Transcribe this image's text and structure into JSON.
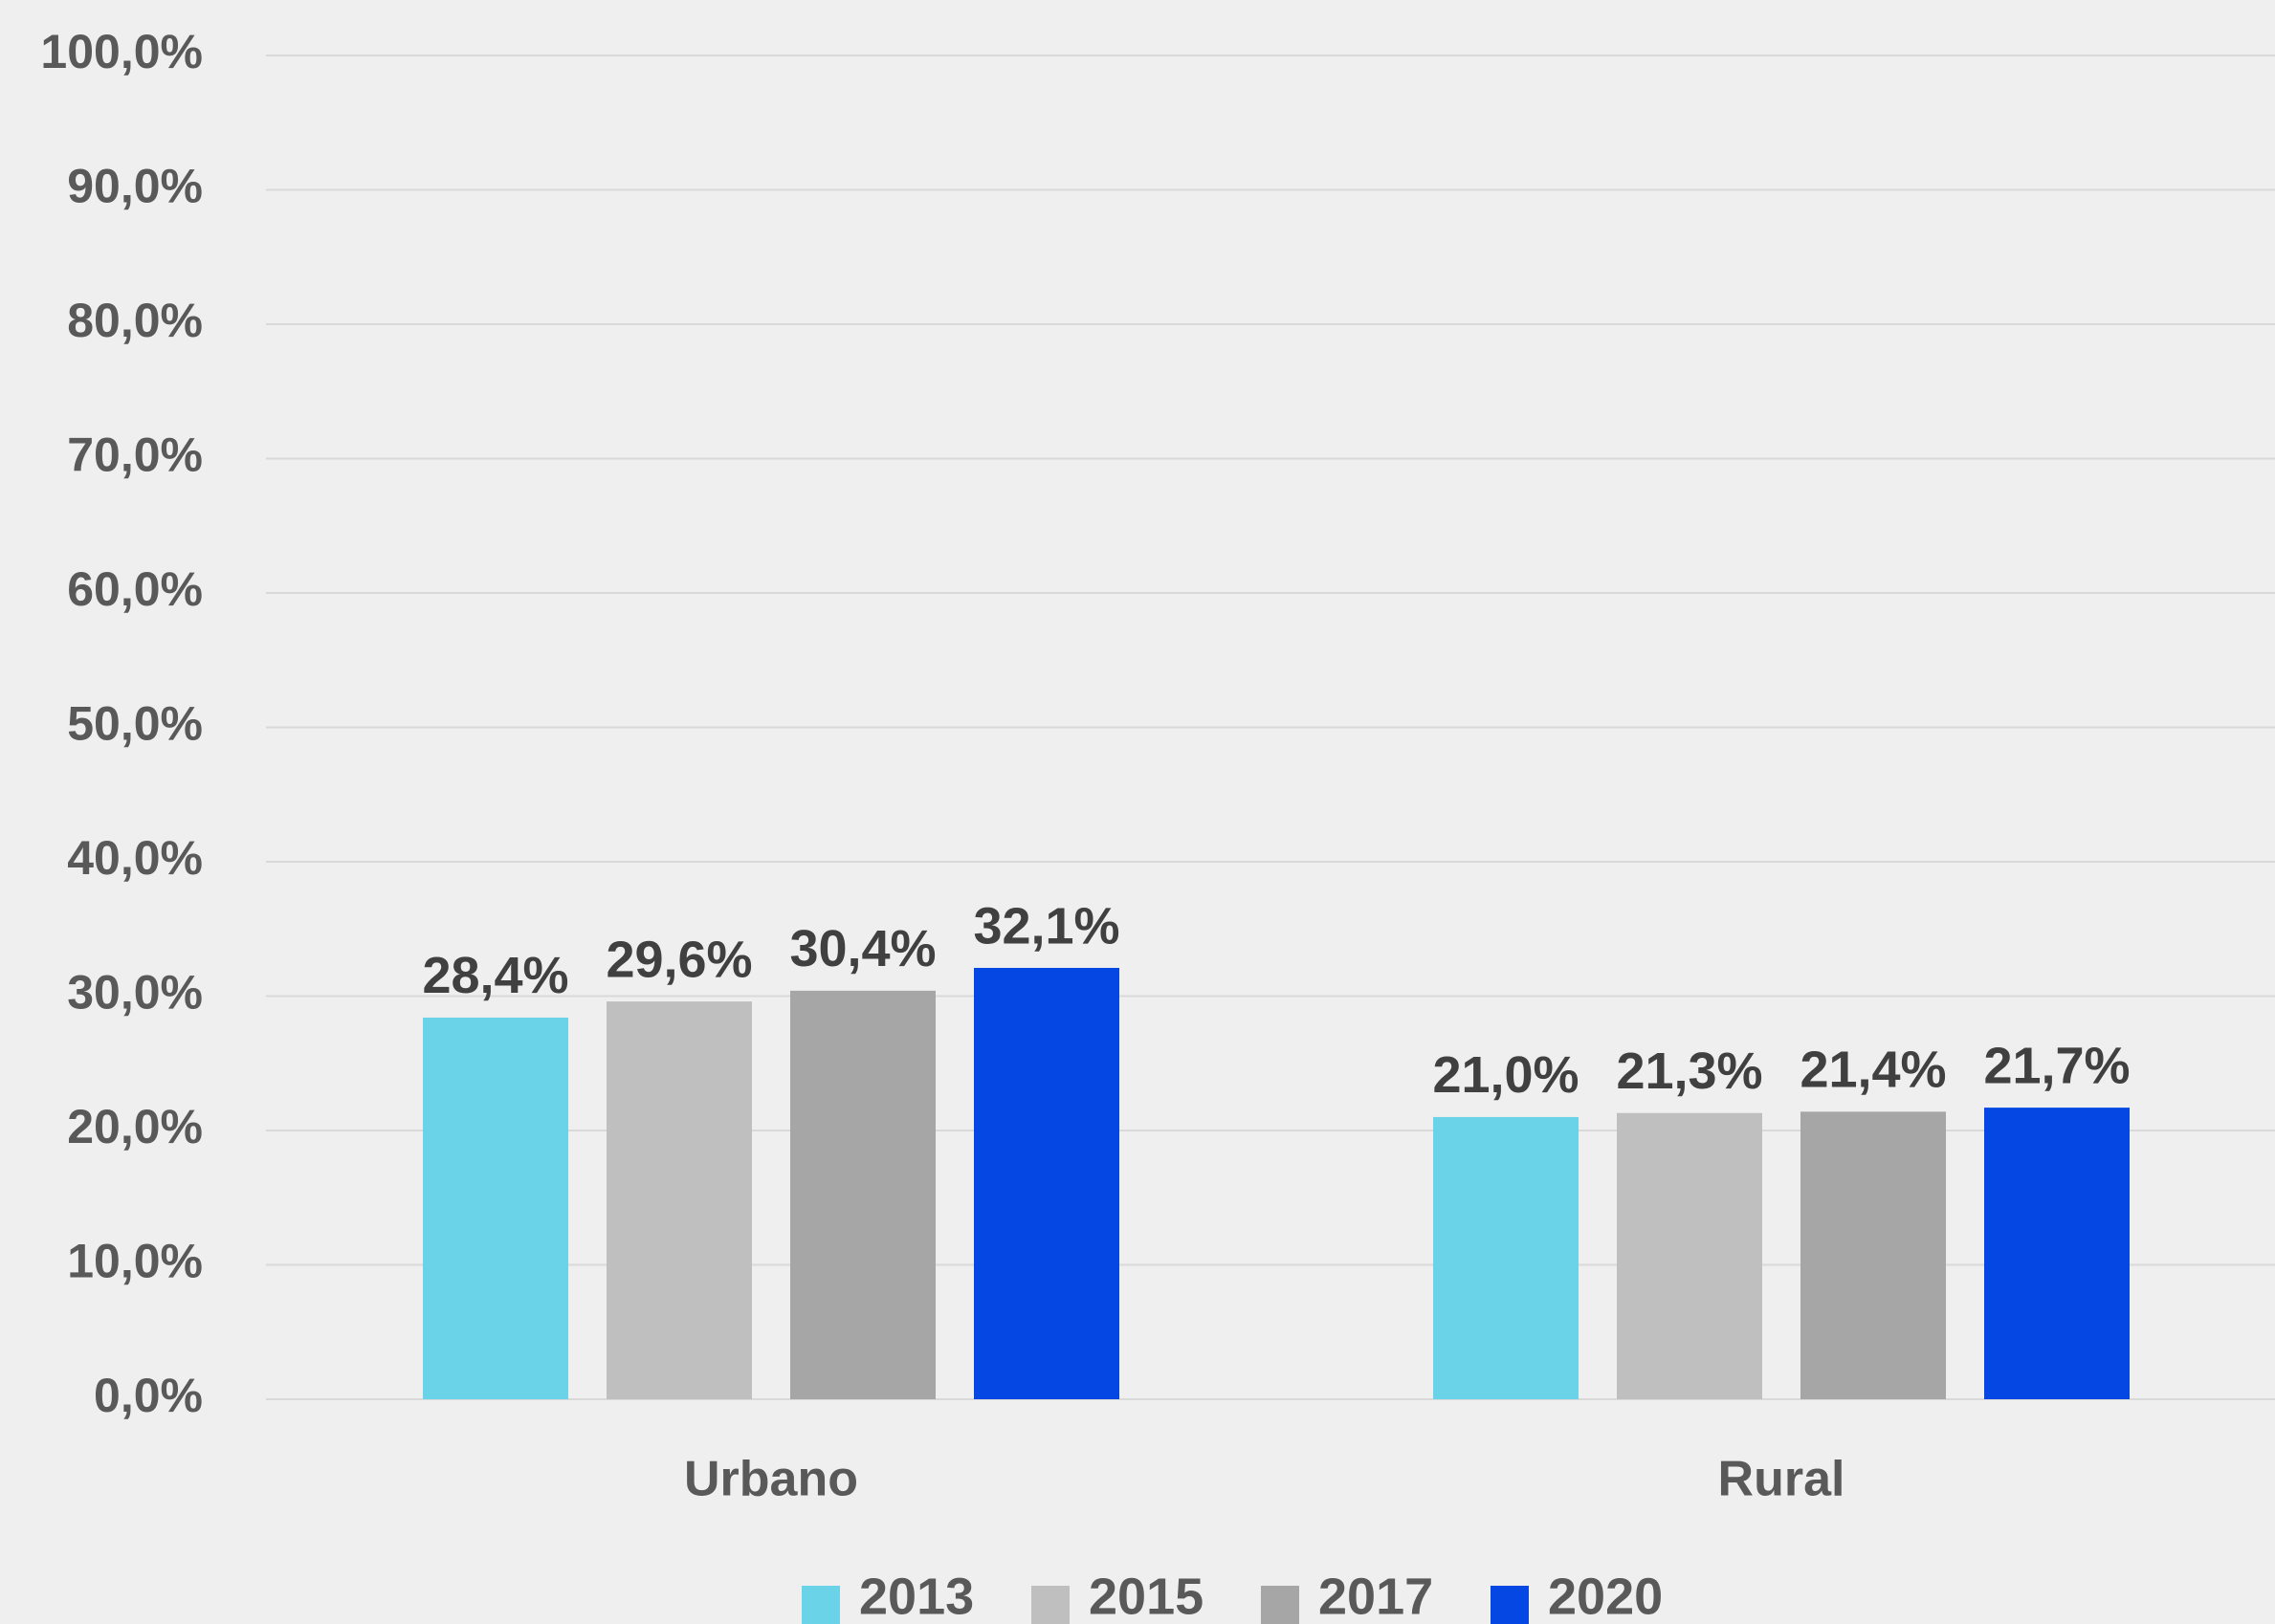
{
  "chart_data": {
    "type": "bar",
    "categories": [
      "Urbano",
      "Rural"
    ],
    "series": [
      {
        "name": "2013",
        "color": "#6ad3e8",
        "values": [
          28.4,
          21.0
        ],
        "value_labels": [
          "28,4%",
          "21,0%"
        ]
      },
      {
        "name": "2015",
        "color": "#bfbfbf",
        "values": [
          29.6,
          21.3
        ],
        "value_labels": [
          "29,6%",
          "21,3%"
        ]
      },
      {
        "name": "2017",
        "color": "#a6a6a6",
        "values": [
          30.4,
          21.4
        ],
        "value_labels": [
          "30,4%",
          "21,4%"
        ]
      },
      {
        "name": "2020",
        "color": "#0447e3",
        "values": [
          32.1,
          21.7
        ],
        "value_labels": [
          "32,1%",
          "21,7%"
        ]
      }
    ],
    "ylim": [
      0,
      100
    ],
    "yticks": [
      {
        "value": 0,
        "label": "0,0%"
      },
      {
        "value": 10,
        "label": "10,0%"
      },
      {
        "value": 20,
        "label": "20,0%"
      },
      {
        "value": 30,
        "label": "30,0%"
      },
      {
        "value": 40,
        "label": "40,0%"
      },
      {
        "value": 50,
        "label": "50,0%"
      },
      {
        "value": 60,
        "label": "60,0%"
      },
      {
        "value": 70,
        "label": "70,0%"
      },
      {
        "value": 80,
        "label": "80,0%"
      },
      {
        "value": 90,
        "label": "90,0%"
      },
      {
        "value": 100,
        "label": "100,0%"
      }
    ],
    "grid": true,
    "legend": "bottom"
  }
}
